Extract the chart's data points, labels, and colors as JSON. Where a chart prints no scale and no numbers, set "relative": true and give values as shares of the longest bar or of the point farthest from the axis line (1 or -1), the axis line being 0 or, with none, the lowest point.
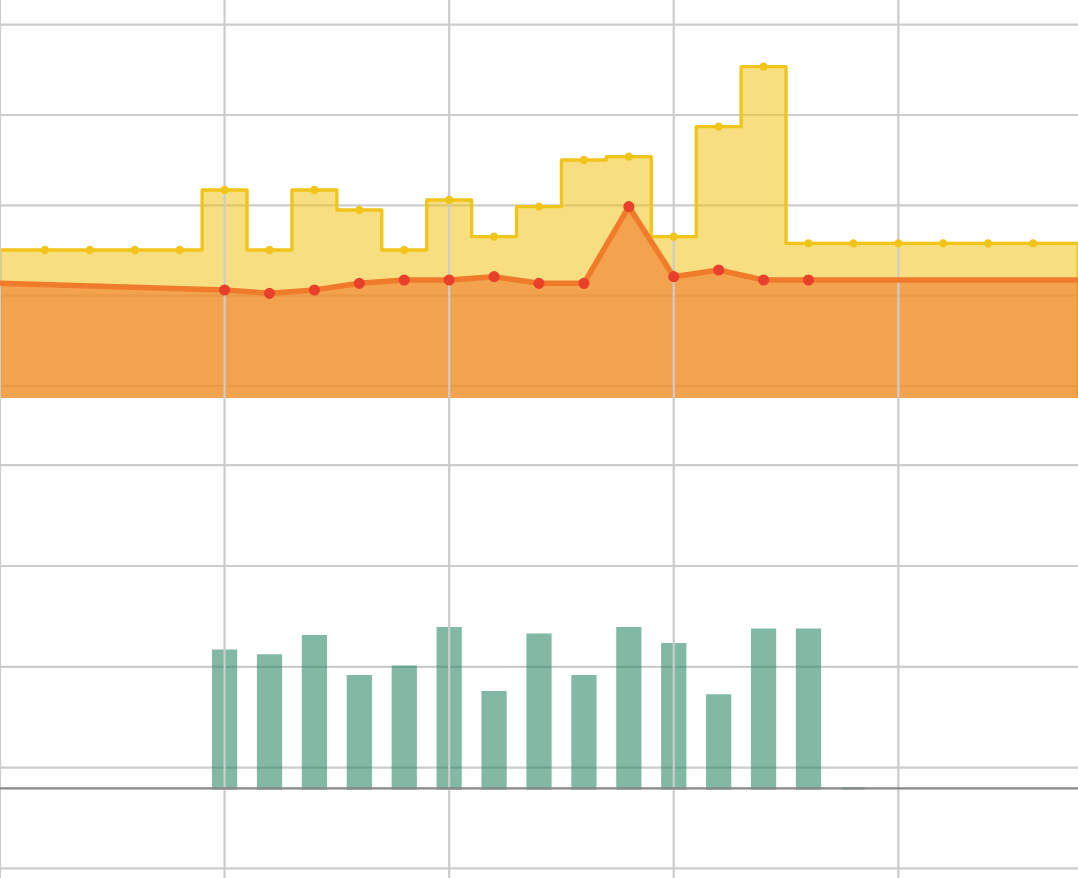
{
  "chart_data": [
    {
      "type": "step",
      "relative": true,
      "grid": true,
      "categories": [
        null,
        null,
        null,
        null,
        null,
        null,
        null,
        null,
        null,
        null,
        null,
        null,
        null,
        null,
        null,
        null,
        null,
        null,
        null,
        null,
        null,
        null,
        null,
        null,
        null
      ],
      "series": [
        {
          "type": "area",
          "color": "#f0c419",
          "marker": "circle",
          "values": [
            0.45,
            0.45,
            0.45,
            0.45,
            0.45,
            0.63,
            0.45,
            0.63,
            0.57,
            0.45,
            0.6,
            0.49,
            0.58,
            0.72,
            0.73,
            0.49,
            0.82,
            1,
            0.47,
            0.47,
            0.47,
            0.47,
            0.47,
            0.47,
            0.47
          ]
        },
        {
          "type": "area",
          "color": "#f07b2b",
          "marker": "circle",
          "values": [
            0.35,
            null,
            null,
            null,
            null,
            0.33,
            0.32,
            0.33,
            0.35,
            0.36,
            0.36,
            0.37,
            0.35,
            0.35,
            0.58,
            0.37,
            0.39,
            0.36,
            0.36,
            null,
            null,
            null,
            null,
            null,
            0.36
          ]
        }
      ]
    },
    {
      "type": "bar",
      "relative": true,
      "grid": true,
      "categories": [
        null,
        null,
        null,
        null,
        null,
        null,
        null,
        null,
        null,
        null,
        null,
        null,
        null,
        null,
        null,
        null,
        null,
        null,
        null,
        null,
        null,
        null,
        null,
        null,
        null
      ],
      "color": "#2e8b6a",
      "values": [
        null,
        null,
        null,
        null,
        null,
        0.86,
        0.83,
        0.95,
        0.7,
        0.76,
        1,
        0.6,
        0.96,
        0.7,
        1,
        0.9,
        0.58,
        0.99,
        0.99,
        0,
        null,
        null,
        null,
        null,
        null
      ]
    }
  ]
}
